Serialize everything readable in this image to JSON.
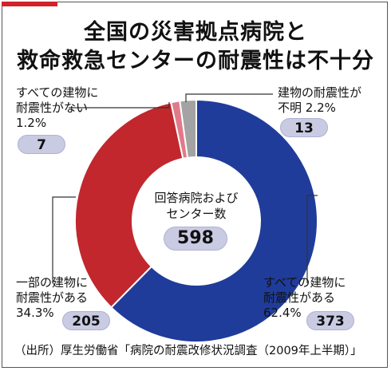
{
  "colors": {
    "accent": "#d2232a",
    "yes_all": "#1f3c9a",
    "yes_some": "#c1272d",
    "none": "#e07a8a",
    "unknown": "#a3a3a3",
    "leader": "#333333"
  },
  "title_line1": "全国の災害拠点病院と",
  "title_line2": "救命救急センターの耐震性は不十分",
  "center_label_line1": "回答病院および",
  "center_label_line2": "センター数",
  "center_total": "598",
  "source": "（出所）厚生労働省「病院の耐震改修状況調査（2009年上半期）」",
  "chart_data": {
    "type": "pie",
    "donut": true,
    "total": 598,
    "slices": [
      {
        "line1": "すべての建物に",
        "line2": "耐震性がある",
        "percent": "62.4%",
        "count": "373",
        "value": 373,
        "color": "#1f3c9a"
      },
      {
        "line1": "一部の建物に",
        "line2": "耐震性がある",
        "percent": "34.3%",
        "count": "205",
        "value": 205,
        "color": "#c1272d"
      },
      {
        "line1": "すべての建物に",
        "line2": "耐震性がない",
        "percent": "1.2%",
        "count": "7",
        "value": 7,
        "color": "#e07a8a"
      },
      {
        "line1": "建物の耐震性が",
        "line2": "不明",
        "percent": "2.2%",
        "count": "13",
        "value": 13,
        "color": "#a3a3a3"
      }
    ]
  }
}
